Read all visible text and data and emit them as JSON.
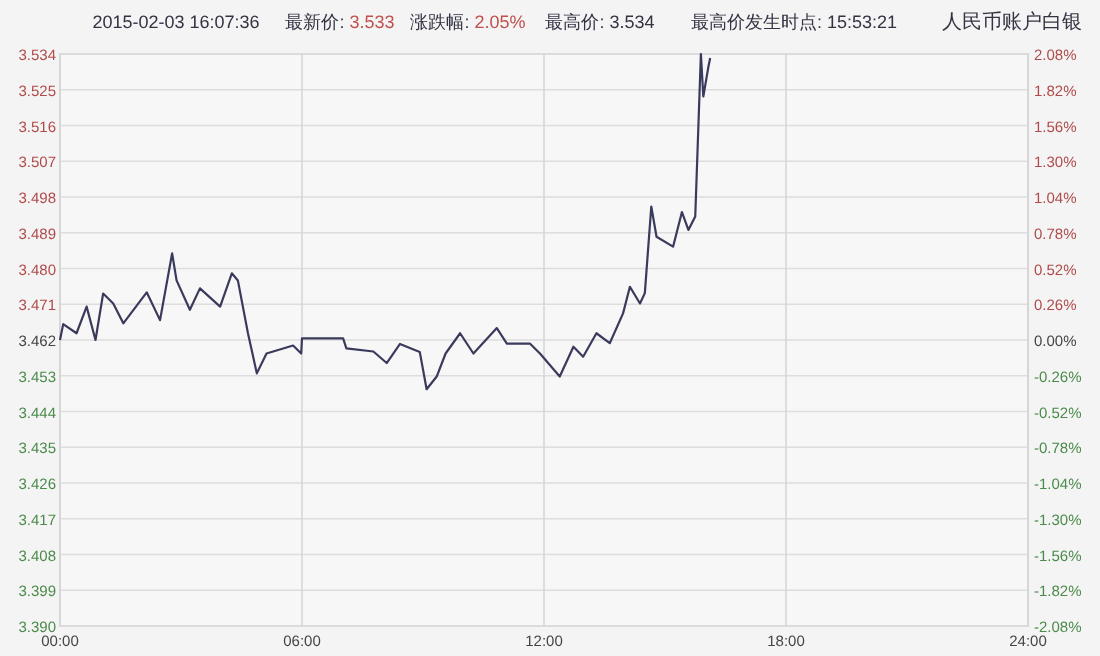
{
  "chart_data": {
    "type": "line",
    "title": "人民币账户白银",
    "subtitle": "2015-02-03 16:07:36",
    "annotations": [
      "最新价: 3.533",
      "涨跌幅: 2.05%",
      "最高价: 3.534",
      "最高价发生时点: 15:53:21"
    ],
    "xlim": [
      0,
      24
    ],
    "xticks": [
      {
        "value": 0,
        "label": "00:00"
      },
      {
        "value": 6,
        "label": "06:00"
      },
      {
        "value": 12,
        "label": "12:00"
      },
      {
        "value": 18,
        "label": "18:00"
      },
      {
        "value": 24,
        "label": "24:00"
      }
    ],
    "ylim": [
      3.39,
      3.534
    ],
    "yticks": [
      {
        "value": 3.39,
        "label": "3.390"
      },
      3.399,
      3.408,
      3.417,
      3.426,
      3.435,
      3.444,
      3.453,
      3.462,
      3.471,
      {
        "value": 3.48,
        "label": "3.480"
      },
      3.489,
      3.498,
      3.507,
      3.516,
      3.525,
      3.534
    ],
    "y2lim": [
      -2.08,
      2.08
    ],
    "y2ticks": [
      {
        "value": -2.08,
        "label": "-2.08%"
      },
      {
        "value": -1.82,
        "label": "-1.82%"
      },
      {
        "value": -1.56,
        "label": "-1.56%"
      },
      {
        "value": -1.3,
        "label": "-1.30%"
      },
      {
        "value": -1.04,
        "label": "-1.04%"
      },
      {
        "value": -0.78,
        "label": "-0.78%"
      },
      {
        "value": -0.52,
        "label": "-0.52%"
      },
      {
        "value": -0.26,
        "label": "-0.26%"
      },
      {
        "value": 0,
        "label": "0.00%"
      },
      {
        "value": 0.26,
        "label": "0.26%"
      },
      {
        "value": 0.52,
        "label": "0.52%"
      },
      {
        "value": 0.78,
        "label": "0.78%"
      },
      {
        "value": 1.04,
        "label": "1.04%"
      },
      {
        "value": 1.3,
        "label": "1.30%"
      },
      {
        "value": 1.56,
        "label": "1.56%"
      },
      {
        "value": 1.82,
        "label": "1.82%"
      },
      {
        "value": 2.08,
        "label": "2.08%"
      }
    ],
    "grid": true,
    "marker": "none",
    "line_style": "solid",
    "series": [
      {
        "color": "#3a3a5c",
        "x": [
          0,
          0.08,
          0.41,
          0.66,
          0.88,
          1.07,
          1.32,
          1.57,
          2.15,
          2.48,
          2.78,
          2.89,
          3.22,
          3.47,
          3.97,
          4.26,
          4.41,
          4.66,
          4.88,
          5.12,
          5.78,
          5.98,
          6.0,
          7.02,
          7.1,
          7.77,
          8.1,
          8.43,
          8.92,
          9.09,
          9.34,
          9.56,
          9.92,
          10.25,
          10.83,
          11.08,
          11.65,
          11.9,
          12.39,
          12.73,
          12.97,
          13.3,
          13.63,
          13.96,
          14.13,
          14.38,
          14.5,
          14.66,
          14.79,
          15.2,
          15.42,
          15.58,
          15.75,
          15.89,
          15.95,
          16.08,
          16.12
        ],
        "values": [
          3.462,
          3.466,
          3.4637,
          3.4704,
          3.462,
          3.4737,
          3.4712,
          3.4662,
          3.474,
          3.467,
          3.4838,
          3.477,
          3.4696,
          3.475,
          3.4704,
          3.4788,
          3.477,
          3.4637,
          3.4536,
          3.4586,
          3.4606,
          3.4586,
          3.4624,
          3.4624,
          3.4599,
          3.4591,
          3.4562,
          3.461,
          3.459,
          3.4496,
          3.4528,
          3.4586,
          3.4637,
          3.4586,
          3.465,
          3.4611,
          3.4611,
          3.4586,
          3.4528,
          3.4603,
          3.4578,
          3.4637,
          3.4612,
          3.4687,
          3.4754,
          3.4712,
          3.4738,
          3.4956,
          3.488,
          3.4855,
          3.4942,
          3.4897,
          3.4931,
          3.534,
          3.5233,
          3.531,
          3.533
        ]
      }
    ]
  }
}
